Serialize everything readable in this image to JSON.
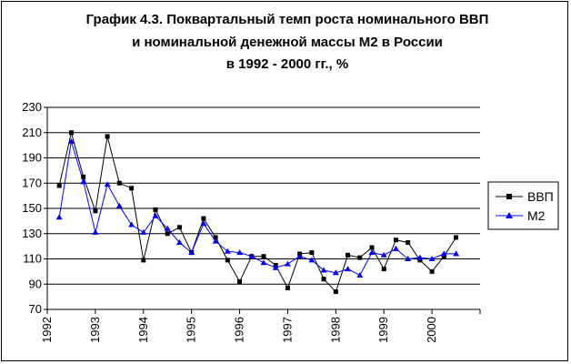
{
  "chart_data": {
    "type": "line",
    "title_lines": [
      "График 4.3. Поквартальный темп роста номинального ВВП",
      "и номинальной денежной массы М2 в России",
      "в 1992 - 2000 гг., %"
    ],
    "xlabel": "",
    "ylabel": "",
    "ylim": [
      70,
      230
    ],
    "yticks": [
      70,
      90,
      110,
      130,
      150,
      170,
      190,
      210,
      230
    ],
    "x_year_labels": [
      "1992",
      "1993",
      "1994",
      "1995",
      "1996",
      "1997",
      "1998",
      "1999",
      "2000"
    ],
    "quarters_per_year": 4,
    "grid": true,
    "legend_position": "right",
    "series": [
      {
        "name": "ВВП",
        "color": "#000000",
        "marker": "square",
        "values": [
          168,
          210,
          175,
          148,
          207,
          170,
          166,
          109,
          149,
          130,
          135,
          115,
          142,
          127,
          109,
          92,
          112,
          112,
          105,
          87,
          114,
          115,
          94,
          84,
          113,
          111,
          119,
          102,
          125,
          123,
          109,
          100,
          112,
          127
        ]
      },
      {
        "name": "М2",
        "color": "#0000ff",
        "marker": "triangle",
        "values": [
          143,
          203,
          171,
          131,
          169,
          152,
          137,
          131,
          144,
          134,
          123,
          115,
          138,
          124,
          116,
          115,
          112,
          107,
          103,
          106,
          112,
          109,
          101,
          99,
          102,
          97,
          115,
          113,
          118,
          110,
          111,
          110,
          114,
          114
        ]
      }
    ]
  }
}
